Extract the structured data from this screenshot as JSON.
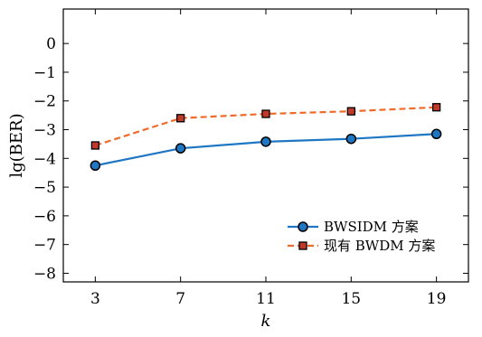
{
  "chart_data": {
    "type": "line",
    "xlabel": "k",
    "ylabel": "lg(BER)",
    "x": [
      3,
      7,
      11,
      15,
      19
    ],
    "xlim": [
      1.5,
      20.5
    ],
    "ylim": [
      -8.3,
      1.2
    ],
    "xticks": [
      "3",
      "7",
      "11",
      "15",
      "19"
    ],
    "yticks": [
      "0",
      "−1",
      "−2",
      "−3",
      "−4",
      "−5",
      "−6",
      "−7",
      "−8"
    ],
    "ytick_values": [
      0,
      -1,
      -2,
      -3,
      -4,
      -5,
      -6,
      -7,
      -8
    ],
    "grid": false,
    "legend_position": "bottom-right",
    "series": [
      {
        "name": "BWSIDM 方案",
        "values": [
          -4.25,
          -3.65,
          -3.42,
          -3.32,
          -3.15
        ],
        "color": "#1f77c4",
        "marker": "circle",
        "marker_fill": "#1f77c4",
        "line_style": "solid"
      },
      {
        "name": "现有 BWDM 方案",
        "values": [
          -3.55,
          -2.6,
          -2.45,
          -2.36,
          -2.22
        ],
        "color": "#f06a2a",
        "marker": "square",
        "marker_fill": "#c0392b",
        "line_style": "dashed"
      }
    ]
  }
}
